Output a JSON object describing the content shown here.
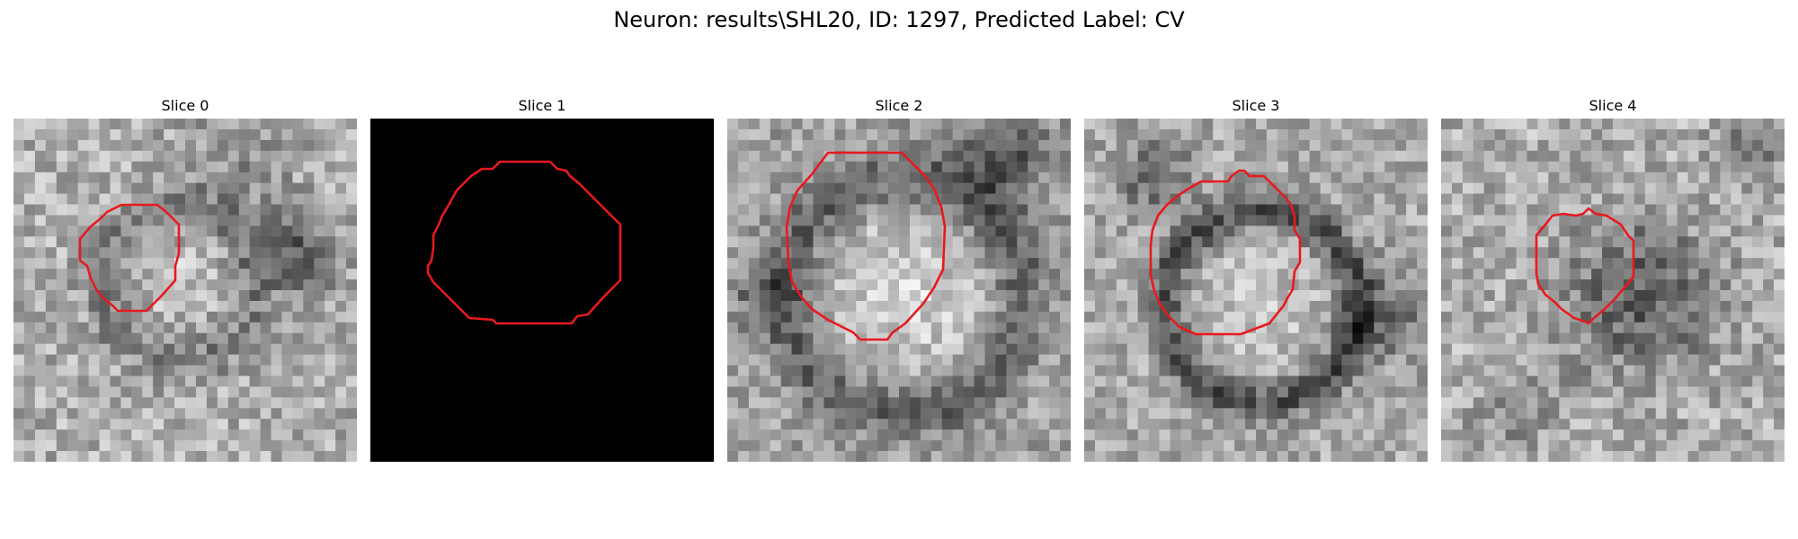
{
  "figure": {
    "title": "Neuron: results\\SHL20, ID: 1297, Predicted Label: CV"
  },
  "contour_color": "#e8191e",
  "panels": [
    {
      "title": "Slice 0",
      "content": "noisy grayscale patch"
    },
    {
      "title": "Slice 1",
      "content": "black patch"
    },
    {
      "title": "Slice 2",
      "content": "bright round cell"
    },
    {
      "title": "Slice 3",
      "content": "bright round cell with dark ring"
    },
    {
      "title": "Slice 4",
      "content": "dark textured cell"
    }
  ]
}
